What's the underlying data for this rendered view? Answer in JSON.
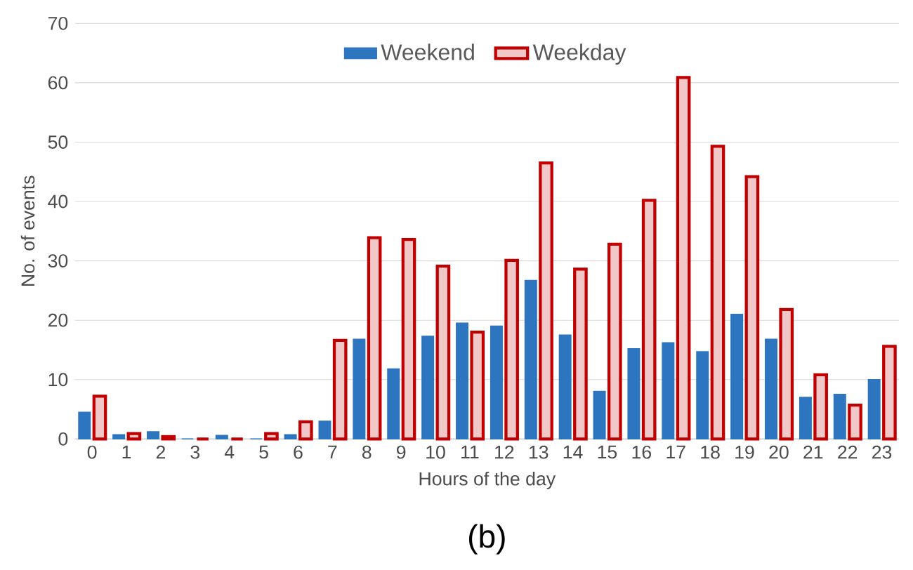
{
  "chart_data": {
    "type": "bar",
    "xlabel": "Hours of the day",
    "ylabel": "No. of events",
    "categories": [
      "0",
      "1",
      "2",
      "3",
      "4",
      "5",
      "6",
      "7",
      "8",
      "9",
      "10",
      "11",
      "12",
      "13",
      "14",
      "15",
      "16",
      "17",
      "18",
      "19",
      "20",
      "21",
      "22",
      "23"
    ],
    "series": [
      {
        "name": "Weekend",
        "color": "#2e75c0",
        "values": [
          4.5,
          0.7,
          1.2,
          0,
          0.6,
          0,
          0.7,
          3,
          16.8,
          11.8,
          17.3,
          19.5,
          19,
          26.7,
          17.5,
          8,
          15.2,
          16.2,
          14.7,
          21,
          16.8,
          7,
          7.5,
          10
        ]
      },
      {
        "name": "Weekday",
        "color": "#c00000",
        "values": [
          7.2,
          0.9,
          0.4,
          0,
          0,
          0.9,
          2.9,
          16.6,
          33.9,
          33.6,
          29.1,
          18,
          30.1,
          46.5,
          28.6,
          32.8,
          40.2,
          60.9,
          49.3,
          44.2,
          21.8,
          10.8,
          5.7,
          15.6
        ]
      }
    ],
    "ylim": [
      0,
      70
    ],
    "yticks": [
      0,
      10,
      20,
      30,
      40,
      50,
      60,
      70
    ],
    "grid": "y",
    "legend": "top",
    "annotations": [
      "(b)"
    ]
  }
}
